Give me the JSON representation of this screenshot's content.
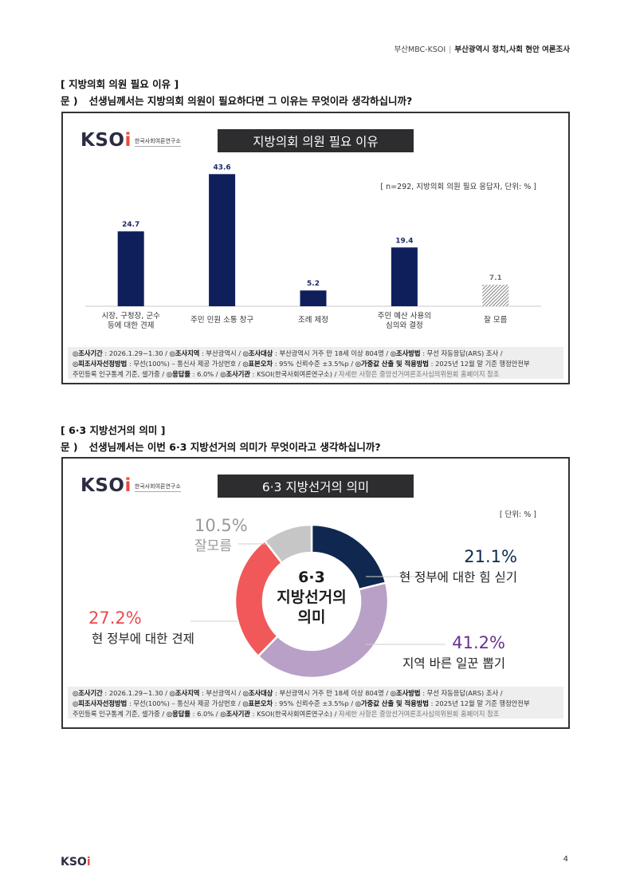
{
  "header": {
    "org": "부산MBC-KSOI",
    "separator": "|",
    "title": "부산광역시 정치,사회 현안 여론조사"
  },
  "section1": {
    "heading": "[ 지방의회 의원 필요 이유 ]",
    "question_prefix": "문 )",
    "question": "선생님께서는 지방의회 의원이 필요하다면 그 이유는 무엇이라 생각하십니까?",
    "logo_mark_main": "KSO",
    "logo_mark_accent": "i",
    "logo_text": "한국사회여론연구소",
    "panel_title": "지방의회 의원 필요 이유",
    "unit_note": "[ n=292, 지방의회 의원 필요 응답자, 단위: % ]"
  },
  "section2": {
    "heading": "[ 6·3 지방선거의 의미 ]",
    "question_prefix": "문 )",
    "question": "선생님께서는 이번 6·3 지방선거의 의미가 무엇이라고 생각하십니까?",
    "logo_mark_main": "KSO",
    "logo_mark_accent": "i",
    "logo_text": "한국사회여론연구소",
    "panel_title": "6·3 지방선거의 의미",
    "unit_note": "[ 단위: % ]",
    "center_lines": [
      "6·3",
      "지방선거의",
      "의미"
    ]
  },
  "chart_data": [
    {
      "type": "bar",
      "title": "지방의회 의원 필요 이유",
      "categories": [
        [
          "시장, 구청장, 군수",
          "등에 대한 견제"
        ],
        [
          "주민 민원 소통 창구"
        ],
        [
          "조례 제정"
        ],
        [
          "주민 예산 사용의",
          "심의와 결정"
        ],
        [
          "잘 모름"
        ]
      ],
      "values": [
        24.7,
        43.6,
        5.2,
        19.4,
        7.1
      ],
      "value_labels": [
        "24.7",
        "43.6",
        "5.2",
        "19.4",
        "7.1"
      ],
      "colors": [
        "#0f1f5c",
        "#0f1f5c",
        "#0f1f5c",
        "#0f1f5c",
        "#888888"
      ],
      "ylim": [
        0,
        50
      ]
    },
    {
      "type": "pie",
      "title": "6·3 지방선거의 의미",
      "slices": [
        {
          "label": "현 정부에 대한 힘 싣기",
          "value": 21.1,
          "display": "21.1%",
          "color": "#10284f"
        },
        {
          "label": "지역 바른 일꾼 뽑기",
          "value": 41.2,
          "display": "41.2%",
          "color": "#b9a0c6"
        },
        {
          "label": "현 정부에 대한 견제",
          "value": 27.2,
          "display": "27.2%",
          "color": "#f0585a"
        },
        {
          "label": "잘모름",
          "value": 10.5,
          "display": "10.5%",
          "color": "#c6c6c6"
        }
      ],
      "label_colors": [
        "#10284f",
        "#6a2f8f",
        "#e94b4e",
        "#999999"
      ]
    }
  ],
  "footer": {
    "line1": [
      {
        "b": "◎조사기간",
        "t": " : 2026.1.29~1.30 / "
      },
      {
        "b": "◎조사지역",
        "t": " : 부산광역시 / "
      },
      {
        "b": "◎조사대상",
        "t": " : 부산광역시 거주 만 18세 이상 804명 / "
      },
      {
        "b": "◎조사방법",
        "t": " : 무선 자동응답(ARS) 조사 /"
      }
    ],
    "line2": [
      {
        "b": "◎피조사자선정방법",
        "t": " : 무선(100%) – 통신사 제공 가상번호 / "
      },
      {
        "b": "◎표본오차",
        "t": " : 95% 신뢰수준 ±3.5%p / "
      },
      {
        "b": "◎가중값 산출 및 적용방법",
        "t": " : 2025년 12월 말 기준 행정안전부"
      }
    ],
    "line3_start": "주민등록 인구통계 기준, 셀가중 / ",
    "line3": [
      {
        "b": "◎응답률",
        "t": " : 6.0% / "
      },
      {
        "b": "◎조사기관",
        "t": " : KSOI(한국사회여론연구소) / "
      }
    ],
    "line3_note": "자세한 사항은 중앙선거여론조사심의위원회 홈페이지 참조"
  },
  "page": {
    "logo_main": "KSO",
    "logo_accent": "i",
    "number": "4"
  }
}
